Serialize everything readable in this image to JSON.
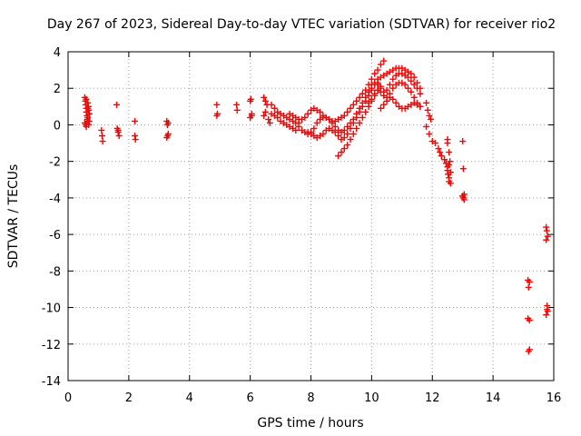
{
  "chart_data": {
    "type": "scatter",
    "title": "Day 267 of 2023, Sidereal Day-to-day VTEC variation (SDTVAR) for receiver rio2",
    "xlabel": "GPS time / hours",
    "ylabel": "SDTVAR / TECUs",
    "xlim": [
      0,
      16
    ],
    "ylim": [
      -14,
      4
    ],
    "xticks": [
      0,
      2,
      4,
      6,
      8,
      10,
      12,
      14,
      16
    ],
    "yticks": [
      -14,
      -12,
      -10,
      -8,
      -6,
      -4,
      -2,
      0,
      2,
      4
    ],
    "grid": true,
    "marker": "+",
    "color": "#ff0000",
    "series": [
      {
        "name": "rio2",
        "x": [
          0.55,
          0.57,
          0.58,
          0.6,
          0.6,
          0.62,
          0.63,
          0.65,
          0.67,
          0.68,
          0.7,
          0.55,
          0.58,
          0.6,
          0.63,
          0.65,
          0.68,
          0.6,
          0.65,
          0.7,
          1.1,
          1.12,
          1.14,
          1.6,
          1.62,
          1.65,
          1.68,
          1.65,
          2.2,
          2.2,
          2.22,
          3.25,
          3.27,
          3.3,
          3.28,
          3.25,
          3.3,
          4.9,
          4.92,
          4.9,
          5.55,
          5.57,
          6.0,
          6.02,
          6.05,
          6.0,
          6.05,
          6.45,
          6.5,
          6.55,
          6.5,
          6.45,
          6.6,
          6.65,
          6.7,
          6.8,
          6.9,
          7.0,
          7.1,
          7.2,
          7.3,
          7.4,
          7.5,
          7.6,
          6.7,
          6.8,
          6.9,
          7.0,
          7.1,
          7.2,
          7.3,
          7.4,
          7.5,
          7.3,
          7.4,
          7.5,
          7.6,
          7.7,
          7.8,
          7.9,
          8.0,
          8.1,
          8.2,
          8.3,
          8.4,
          8.5,
          8.6,
          8.7,
          8.8,
          8.9,
          9.0,
          9.1,
          9.2,
          9.3,
          9.4,
          9.5,
          9.6,
          9.7,
          9.8,
          9.9,
          10.0,
          10.1,
          10.2,
          10.3,
          10.4,
          7.6,
          7.7,
          7.8,
          7.9,
          8.0,
          8.1,
          8.2,
          8.3,
          8.4,
          8.5,
          8.6,
          8.7,
          8.8,
          8.9,
          9.0,
          9.1,
          9.2,
          9.3,
          9.4,
          9.5,
          9.6,
          9.7,
          9.8,
          9.9,
          10.0,
          10.1,
          10.2,
          7.9,
          8.0,
          8.1,
          8.2,
          8.3,
          8.4,
          8.5,
          8.6,
          8.7,
          8.8,
          8.9,
          9.0,
          9.1,
          9.2,
          9.3,
          9.4,
          9.5,
          9.6,
          9.7,
          9.8,
          9.9,
          10.0,
          8.9,
          9.0,
          9.1,
          9.2,
          9.3,
          9.4,
          9.5,
          9.6,
          9.7,
          9.8,
          9.9,
          10.0,
          10.1,
          10.2,
          10.3,
          10.2,
          10.3,
          10.4,
          10.5,
          10.6,
          10.7,
          10.8,
          10.9,
          11.0,
          11.1,
          11.2,
          11.3,
          11.4,
          11.5,
          11.6,
          10.0,
          10.1,
          10.2,
          10.3,
          10.4,
          10.5,
          10.6,
          10.7,
          10.8,
          10.9,
          11.0,
          11.1,
          11.2,
          11.3,
          11.4,
          11.5,
          11.6,
          9.9,
          10.0,
          10.1,
          10.2,
          10.3,
          10.4,
          10.5,
          10.6,
          10.7,
          10.8,
          10.9,
          11.0,
          11.1,
          11.2,
          11.3,
          11.4,
          11.5,
          11.6,
          10.3,
          10.4,
          10.5,
          10.6,
          10.7,
          10.8,
          10.9,
          11.0,
          11.1,
          11.2,
          11.3,
          11.4,
          11.5,
          11.6,
          11.8,
          11.85,
          11.9,
          11.95,
          11.8,
          11.9,
          12.0,
          12.1,
          12.2,
          12.25,
          12.3,
          12.4,
          12.45,
          12.5,
          12.5,
          12.52,
          12.55,
          12.55,
          12.6,
          12.5,
          12.55,
          12.58,
          12.6,
          12.5,
          12.55,
          13.0,
          13.02,
          13.05,
          13.0,
          13.02,
          13.05,
          13.0,
          13.03,
          15.15,
          15.17,
          15.2,
          15.15,
          15.2,
          15.17,
          15.2,
          15.75,
          15.77,
          15.8,
          15.75,
          15.78,
          15.8,
          15.75,
          15.78
        ],
        "y": [
          1.5,
          1.3,
          1.1,
          0.9,
          0.7,
          0.5,
          0.3,
          1.2,
          1.0,
          0.8,
          0.6,
          0.1,
          0.0,
          -0.1,
          0.2,
          0.4,
          0.0,
          1.4,
          0.9,
          0.2,
          -0.3,
          -0.6,
          -0.9,
          1.1,
          -0.2,
          -0.4,
          -0.6,
          -0.3,
          0.2,
          -0.6,
          -0.8,
          0.2,
          0.0,
          0.1,
          -0.6,
          -0.7,
          -0.5,
          1.1,
          0.6,
          0.5,
          1.1,
          0.8,
          1.3,
          1.4,
          0.5,
          0.4,
          0.6,
          1.5,
          1.3,
          1.1,
          0.7,
          0.5,
          0.3,
          0.1,
          1.1,
          0.9,
          0.7,
          0.6,
          0.5,
          0.4,
          0.3,
          0.2,
          0.1,
          0.1,
          0.6,
          0.5,
          0.4,
          0.2,
          0.1,
          0.0,
          -0.1,
          -0.2,
          -0.3,
          0.6,
          0.5,
          0.4,
          0.3,
          0.3,
          0.4,
          0.6,
          0.8,
          0.9,
          0.8,
          0.7,
          0.5,
          0.4,
          0.3,
          0.2,
          0.2,
          0.3,
          0.4,
          0.5,
          0.7,
          0.9,
          1.1,
          1.3,
          1.5,
          1.7,
          1.9,
          2.2,
          2.5,
          2.8,
          3.0,
          3.3,
          3.5,
          -0.1,
          -0.3,
          -0.4,
          -0.5,
          -0.4,
          -0.2,
          0.1,
          0.3,
          0.4,
          0.4,
          0.3,
          0.1,
          -0.1,
          -0.3,
          -0.4,
          -0.3,
          -0.1,
          0.1,
          0.3,
          0.6,
          0.9,
          1.2,
          1.5,
          1.8,
          2.0,
          2.2,
          2.3,
          -0.4,
          -0.5,
          -0.6,
          -0.7,
          -0.6,
          -0.5,
          -0.3,
          -0.2,
          -0.3,
          -0.4,
          -0.6,
          -0.8,
          -0.7,
          -0.5,
          -0.2,
          0.1,
          0.4,
          0.7,
          1.0,
          1.3,
          1.6,
          1.9,
          -1.7,
          -1.5,
          -1.3,
          -1.1,
          -0.8,
          -0.5,
          -0.2,
          0.1,
          0.4,
          0.7,
          1.0,
          1.3,
          1.6,
          1.9,
          2.1,
          2.5,
          2.6,
          2.7,
          2.8,
          2.9,
          3.0,
          3.1,
          3.1,
          3.1,
          3.0,
          2.9,
          2.8,
          2.6,
          2.3,
          2.0,
          2.2,
          2.3,
          2.2,
          2.0,
          1.8,
          1.9,
          2.2,
          2.5,
          2.7,
          2.8,
          2.8,
          2.7,
          2.6,
          2.4,
          2.2,
          2.0,
          1.7,
          1.2,
          1.4,
          1.7,
          1.9,
          1.8,
          1.6,
          1.5,
          1.7,
          2.0,
          2.2,
          2.3,
          2.3,
          2.2,
          2.0,
          1.8,
          1.5,
          1.2,
          1.0,
          0.9,
          1.1,
          1.3,
          1.5,
          1.4,
          1.2,
          1.0,
          0.9,
          0.9,
          1.0,
          1.1,
          1.2,
          1.1,
          1.0,
          1.2,
          0.8,
          0.5,
          0.3,
          -0.1,
          -0.5,
          -0.9,
          -1.0,
          -1.3,
          -1.5,
          -1.7,
          -1.9,
          -2.1,
          -2.3,
          -2.5,
          -2.7,
          -2.9,
          -3.1,
          -3.2,
          -1.0,
          -1.5,
          -2.0,
          -2.6,
          -0.8,
          -2.2,
          -0.9,
          -2.4,
          -3.8,
          -3.9,
          -4.0,
          -4.1,
          -3.9,
          -4.0,
          -8.5,
          -8.9,
          -8.6,
          -10.6,
          -10.7,
          -12.4,
          -12.3,
          -5.6,
          -5.8,
          -6.1,
          -6.3,
          -9.9,
          -10.2,
          -10.4,
          -10.1
        ]
      }
    ]
  }
}
